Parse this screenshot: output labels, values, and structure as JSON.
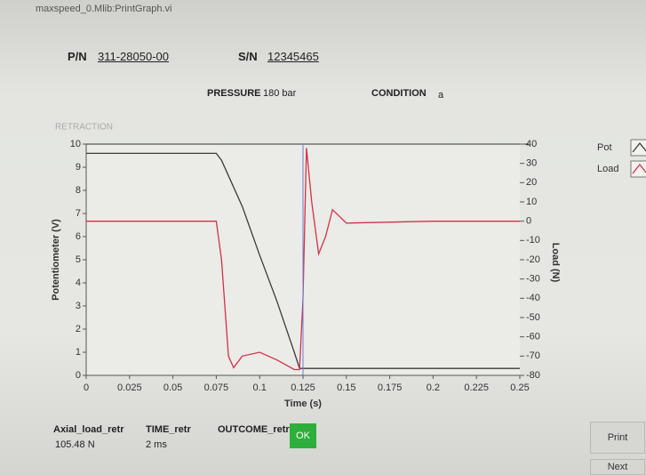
{
  "window_title": "maxspeed_0.Mlib:PrintGraph.vi",
  "header": {
    "pn_label": "P/N",
    "pn": "311-28050-00",
    "sn_label": "S/N",
    "sn": "12345465",
    "pressure_label": "PRESSURE",
    "pressure": "180 bar",
    "condition_label": "CONDITION",
    "condition": "a"
  },
  "chart_data": {
    "type": "line",
    "title": "RETRACTION",
    "xlabel": "Time (s)",
    "ylabel": "Potentiometer (V)",
    "y2label": "Load (N)",
    "xlim": [
      0,
      0.25
    ],
    "xticks": [
      0,
      0.025,
      0.05,
      0.075,
      0.1,
      0.125,
      0.15,
      0.175,
      0.2,
      0.225,
      0.25
    ],
    "ylim": [
      0,
      10
    ],
    "yticks": [
      0,
      1,
      2,
      3,
      4,
      5,
      6,
      7,
      8,
      9,
      10
    ],
    "y2lim": [
      -80,
      40
    ],
    "y2ticks": [
      40,
      30,
      20,
      10,
      0,
      -10,
      -20,
      -30,
      -40,
      -50,
      -60,
      -70,
      -80
    ],
    "legend": "right",
    "series": [
      {
        "name": "Pot",
        "color": "#3a3a3a",
        "x": [
          0,
          0.075,
          0.078,
          0.09,
          0.1,
          0.11,
          0.12,
          0.123,
          0.125,
          0.25
        ],
        "values": [
          9.6,
          9.6,
          9.3,
          7.3,
          5.2,
          3.2,
          1.0,
          0.3,
          0.3,
          0.3
        ]
      },
      {
        "name": "Load",
        "color": "#d2324a",
        "axis": "y2",
        "x": [
          0,
          0.05,
          0.075,
          0.078,
          0.082,
          0.085,
          0.09,
          0.1,
          0.11,
          0.12,
          0.123,
          0.125,
          0.127,
          0.13,
          0.134,
          0.138,
          0.142,
          0.15,
          0.2,
          0.25
        ],
        "values": [
          0,
          0,
          0,
          -20,
          -70,
          -76,
          -70,
          -68,
          -72,
          -77,
          -77,
          -40,
          38,
          10,
          -17,
          -8,
          6,
          -1,
          0,
          0
        ]
      }
    ]
  },
  "footer": {
    "fields": [
      {
        "label": "Axial_load_retr",
        "value": "105.48 N"
      },
      {
        "label": "TIME_retr",
        "value": "2 ms"
      },
      {
        "label": "OUTCOME_retr",
        "value": "OK"
      }
    ]
  },
  "buttons": [
    "Print",
    "Next"
  ]
}
